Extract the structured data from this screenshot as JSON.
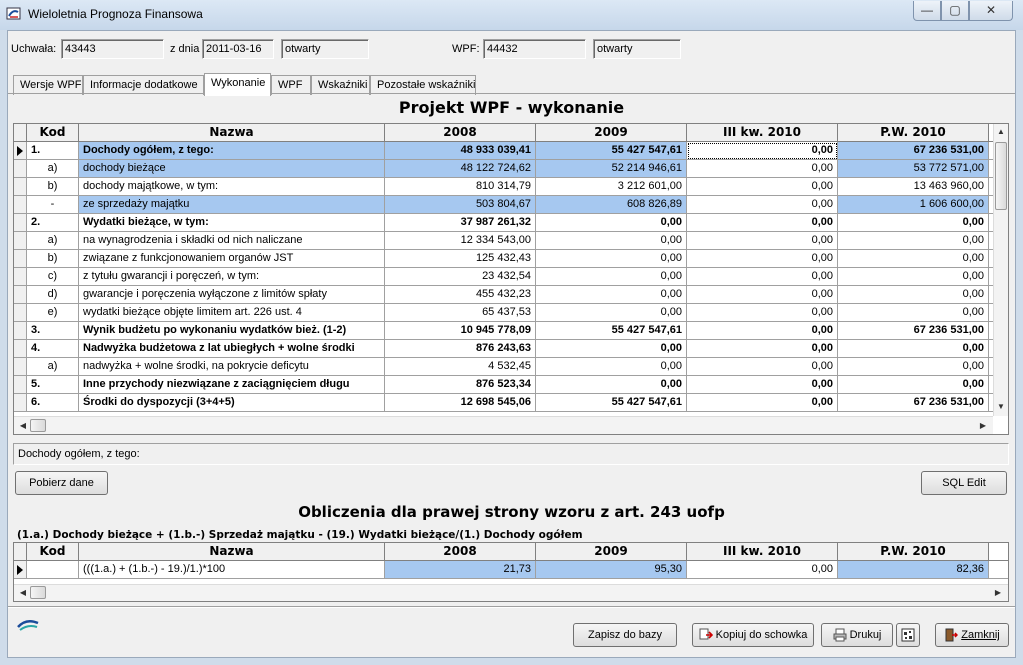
{
  "window": {
    "title": "Wieloletnia Prognoza Finansowa"
  },
  "header": {
    "uchwala_label": "Uchwała:",
    "uchwala_value": "43443",
    "zdnia_label": "z dnia",
    "zdnia_value": "2011-03-16",
    "status1": "otwarty",
    "wpf_label": "WPF:",
    "wpf_value": "44432",
    "status2": "otwarty"
  },
  "tabs": [
    "Wersje WPF",
    "Informacje dodatkowe",
    "Wykonanie",
    "WPF",
    "Wskaźniki",
    "Pozostałe wskaźniki"
  ],
  "active_tab": "Wykonanie",
  "main": {
    "title": "Projekt WPF - wykonanie",
    "columns": [
      "Kod",
      "Nazwa",
      "2008",
      "2009",
      "III kw. 2010",
      "P.W. 2010"
    ],
    "rows": [
      {
        "kod": "1.",
        "nazwa": "Dochody ogółem, z tego:",
        "v": [
          "48 933 039,41",
          "55 427 547,61",
          "0,00",
          "67 236 531,00"
        ],
        "bold": true,
        "current": true
      },
      {
        "kod": "a)",
        "nazwa": "dochody bieżące",
        "v": [
          "48 122 724,62",
          "52 214 946,61",
          "0,00",
          "53 772 571,00"
        ],
        "bold": false
      },
      {
        "kod": "b)",
        "nazwa": "dochody majątkowe, w tym:",
        "v": [
          "810 314,79",
          "3 212 601,00",
          "0,00",
          "13 463 960,00"
        ],
        "bold": false
      },
      {
        "kod": "-",
        "nazwa": "ze sprzedaży majątku",
        "v": [
          "503 804,67",
          "608 826,89",
          "0,00",
          "1 606 600,00"
        ],
        "bold": false
      },
      {
        "kod": "2.",
        "nazwa": "Wydatki bieżące, w tym:",
        "v": [
          "37 987 261,32",
          "0,00",
          "0,00",
          "0,00"
        ],
        "bold": true
      },
      {
        "kod": "a)",
        "nazwa": "na wynagrodzenia i składki od nich naliczane",
        "v": [
          "12 334 543,00",
          "0,00",
          "0,00",
          "0,00"
        ],
        "bold": false
      },
      {
        "kod": "b)",
        "nazwa": "związane z funkcjonowaniem organów JST",
        "v": [
          "125 432,43",
          "0,00",
          "0,00",
          "0,00"
        ],
        "bold": false
      },
      {
        "kod": "c)",
        "nazwa": "z tytułu gwarancji i poręczeń, w tym:",
        "v": [
          "23 432,54",
          "0,00",
          "0,00",
          "0,00"
        ],
        "bold": false
      },
      {
        "kod": "d)",
        "nazwa": "gwarancje i poręczenia wyłączone z limitów spłaty",
        "v": [
          "455 432,23",
          "0,00",
          "0,00",
          "0,00"
        ],
        "bold": false
      },
      {
        "kod": "e)",
        "nazwa": "wydatki bieżące objęte limitem art. 226 ust. 4",
        "v": [
          "65 437,53",
          "0,00",
          "0,00",
          "0,00"
        ],
        "bold": false
      },
      {
        "kod": "3.",
        "nazwa": "Wynik budżetu po wykonaniu wydatków bież. (1-2)",
        "v": [
          "10 945 778,09",
          "55 427 547,61",
          "0,00",
          "67 236 531,00"
        ],
        "bold": true
      },
      {
        "kod": "4.",
        "nazwa": "Nadwyżka budżetowa z lat ubiegłych + wolne środki",
        "v": [
          "876 243,63",
          "0,00",
          "0,00",
          "0,00"
        ],
        "bold": true
      },
      {
        "kod": "a)",
        "nazwa": "nadwyżka + wolne środki, na pokrycie deficytu",
        "v": [
          "4 532,45",
          "0,00",
          "0,00",
          "0,00"
        ],
        "bold": false
      },
      {
        "kod": "5.",
        "nazwa": "Inne przychody niezwiązane z zaciągnięciem długu",
        "v": [
          "876 523,34",
          "0,00",
          "0,00",
          "0,00"
        ],
        "bold": true
      },
      {
        "kod": "6.",
        "nazwa": "Środki do dyspozycji (3+4+5)",
        "v": [
          "12 698 545,06",
          "55 427 547,61",
          "0,00",
          "67 236 531,00"
        ],
        "bold": true
      }
    ]
  },
  "status_text": "Dochody ogółem, z tego:",
  "buttons": {
    "pobierz": "Pobierz dane",
    "sql": "SQL Edit",
    "zapisz": "Zapisz do bazy",
    "kopiuj": "Kopiuj do schowka",
    "drukuj": "Drukuj",
    "zamknij": "Zamknij"
  },
  "calc": {
    "title": "Obliczenia dla prawej strony wzoru z art. 243 uofp",
    "subtitle": "(1.a.) Dochody bieżące + (1.b.-) Sprzedaż majątku - (19.) Wydatki bieżące/(1.) Dochody ogółem",
    "columns": [
      "Kod",
      "Nazwa",
      "2008",
      "2009",
      "III kw. 2010",
      "P.W. 2010"
    ],
    "rows": [
      {
        "kod": "",
        "nazwa": "(((1.a.) + (1.b.-) - 19.)/1.)*100",
        "v": [
          "21,73",
          "95,30",
          "0,00",
          "82,36"
        ]
      }
    ]
  },
  "colors": {
    "highlight": "#a6c8f0",
    "titlebar": "#c6d7ea"
  }
}
